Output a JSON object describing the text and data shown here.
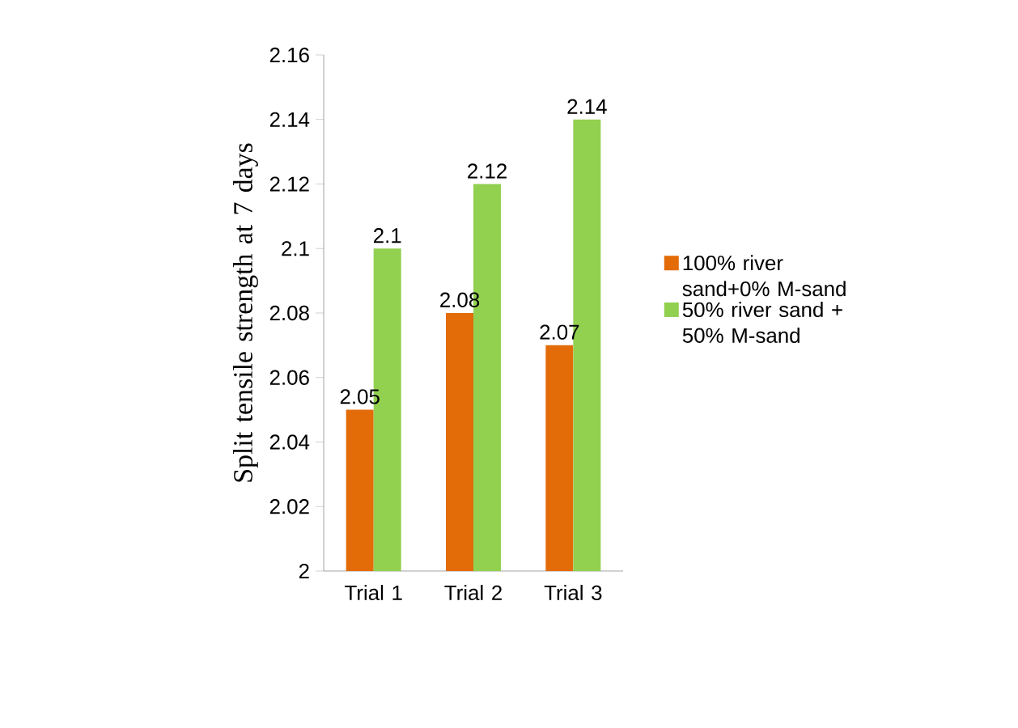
{
  "chart_data": {
    "type": "bar",
    "ylabel": "Split tensile strength at 7 days",
    "categories": [
      "Trial 1",
      "Trial 2",
      "Trial 3"
    ],
    "series": [
      {
        "name": "100% river sand+0% M-sand",
        "color": "#e36c09",
        "values": [
          2.05,
          2.08,
          2.07
        ]
      },
      {
        "name": "50% river sand + 50% M-sand",
        "color": "#92d050",
        "values": [
          2.1,
          2.12,
          2.14
        ]
      }
    ],
    "ylim": [
      2,
      2.16
    ],
    "yticks": [
      2,
      2.02,
      2.04,
      2.06,
      2.08,
      2.1,
      2.12,
      2.14,
      2.16
    ],
    "data_labels": true,
    "legend": "right"
  }
}
